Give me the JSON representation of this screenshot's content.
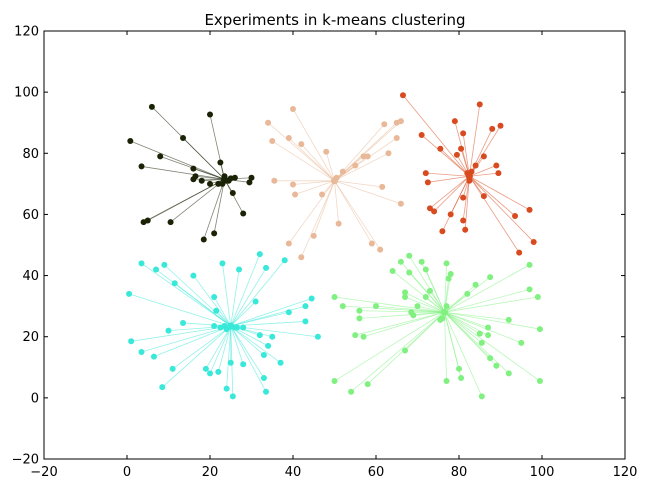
{
  "chart_data": {
    "type": "scatter",
    "title": "Experiments in k-means clustering",
    "xlabel": "",
    "ylabel": "",
    "xlim": [
      -20,
      120
    ],
    "ylim": [
      -20,
      120
    ],
    "x_ticks": [
      "−20",
      "0",
      "20",
      "40",
      "60",
      "80",
      "100",
      "120"
    ],
    "y_ticks": [
      "−20",
      "0",
      "20",
      "40",
      "60",
      "80",
      "100",
      "120"
    ],
    "grid": false,
    "legend": "none",
    "series": [
      {
        "color": "#1a2305",
        "points": [
          [
            0.8,
            84
          ],
          [
            3.5,
            75.7
          ],
          [
            4,
            57.5
          ],
          [
            5,
            58
          ],
          [
            6,
            95.2
          ],
          [
            8,
            79
          ],
          [
            10.5,
            57.5
          ],
          [
            13.5,
            85
          ],
          [
            16,
            75
          ],
          [
            16,
            71.5
          ],
          [
            16.5,
            72.5
          ],
          [
            18,
            71
          ],
          [
            18.5,
            51.8
          ],
          [
            20,
            92.7
          ],
          [
            21,
            53.8
          ],
          [
            22.5,
            77
          ],
          [
            23,
            70
          ],
          [
            23.5,
            72.5
          ],
          [
            24.5,
            71
          ],
          [
            25,
            71.8
          ],
          [
            25.5,
            67
          ],
          [
            28,
            60.3
          ],
          [
            29.5,
            70.5
          ],
          [
            30,
            72
          ],
          [
            20,
            70
          ],
          [
            22,
            70
          ],
          [
            24,
            71
          ],
          [
            26,
            72
          ]
        ],
        "centroid": [
          23.5,
          71.5
        ]
      },
      {
        "color": "#e8b898",
        "points": [
          [
            34,
            90
          ],
          [
            35,
            84
          ],
          [
            35.5,
            71
          ],
          [
            39,
            85
          ],
          [
            40,
            94.5
          ],
          [
            40,
            69.8
          ],
          [
            40.5,
            66.5
          ],
          [
            42,
            83
          ],
          [
            39,
            50.5
          ],
          [
            42,
            46
          ],
          [
            45,
            53
          ],
          [
            47,
            66.5
          ],
          [
            48,
            80.5
          ],
          [
            50,
            71
          ],
          [
            50.5,
            72
          ],
          [
            51,
            57
          ],
          [
            52,
            74
          ],
          [
            55,
            76
          ],
          [
            57,
            79
          ],
          [
            58,
            79
          ],
          [
            59,
            50.5
          ],
          [
            61,
            48.5
          ],
          [
            61.5,
            69
          ],
          [
            62,
            89.5
          ],
          [
            63,
            80
          ],
          [
            65,
            90
          ],
          [
            65,
            85
          ],
          [
            66,
            90.5
          ],
          [
            66,
            63.5
          ]
        ],
        "centroid": [
          50,
          71
        ]
      },
      {
        "color": "#d84a1f",
        "points": [
          [
            66.5,
            99
          ],
          [
            71,
            86
          ],
          [
            72,
            73.5
          ],
          [
            72.5,
            70.5
          ],
          [
            73,
            62
          ],
          [
            74,
            61
          ],
          [
            75.5,
            81.5
          ],
          [
            76,
            54.5
          ],
          [
            78,
            60
          ],
          [
            79,
            90.5
          ],
          [
            79.5,
            79.5
          ],
          [
            80.5,
            81.5
          ],
          [
            81,
            86.5
          ],
          [
            81,
            65.5
          ],
          [
            81,
            58
          ],
          [
            81.5,
            55
          ],
          [
            82,
            73.5
          ],
          [
            82.5,
            71
          ],
          [
            83,
            74
          ],
          [
            84,
            76
          ],
          [
            85,
            96
          ],
          [
            86,
            79
          ],
          [
            86,
            66
          ],
          [
            88,
            88
          ],
          [
            89,
            76
          ],
          [
            89.5,
            73.5
          ],
          [
            90,
            89
          ],
          [
            93.5,
            59.5
          ],
          [
            94.5,
            47.5
          ],
          [
            97,
            61.5
          ],
          [
            98,
            51
          ]
        ],
        "centroid": [
          82.5,
          72.5
        ]
      },
      {
        "color": "#38e8d8",
        "points": [
          [
            0.5,
            34
          ],
          [
            1,
            18.5
          ],
          [
            3.5,
            15
          ],
          [
            3.5,
            44
          ],
          [
            6.5,
            13.5
          ],
          [
            7,
            42
          ],
          [
            8.5,
            3.5
          ],
          [
            9,
            43.5
          ],
          [
            10,
            22
          ],
          [
            11,
            9.5
          ],
          [
            11.5,
            37.5
          ],
          [
            13.5,
            24.5
          ],
          [
            16,
            40
          ],
          [
            19,
            9.5
          ],
          [
            20,
            8
          ],
          [
            21,
            33
          ],
          [
            21,
            23.5
          ],
          [
            21.5,
            28.5
          ],
          [
            22,
            8.5
          ],
          [
            23,
            44
          ],
          [
            24,
            3
          ],
          [
            24,
            22.5
          ],
          [
            25,
            11.5
          ],
          [
            25.5,
            0.5
          ],
          [
            26,
            23
          ],
          [
            27,
            42
          ],
          [
            28,
            23
          ],
          [
            28,
            11
          ],
          [
            31,
            31.5
          ],
          [
            32,
            47
          ],
          [
            33,
            6.5
          ],
          [
            33,
            14
          ],
          [
            33.5,
            42.5
          ],
          [
            33.5,
            2
          ],
          [
            34,
            17
          ],
          [
            35,
            20
          ],
          [
            37,
            11.5
          ],
          [
            38,
            45
          ],
          [
            39,
            28
          ],
          [
            43,
            30
          ],
          [
            43,
            25
          ],
          [
            44.5,
            32.5
          ],
          [
            46,
            20
          ],
          [
            23.5,
            23.5
          ],
          [
            25,
            23.5
          ],
          [
            26.5,
            23
          ],
          [
            32,
            20.5
          ],
          [
            22.5,
            23
          ]
        ],
        "centroid": [
          25,
          23.5
        ]
      },
      {
        "color": "#80f080",
        "points": [
          [
            50,
            33
          ],
          [
            50,
            5.5
          ],
          [
            52,
            30
          ],
          [
            54,
            2
          ],
          [
            55,
            20.5
          ],
          [
            56,
            28.5
          ],
          [
            56,
            26
          ],
          [
            57,
            20
          ],
          [
            58,
            4.5
          ],
          [
            60,
            30
          ],
          [
            64,
            41.5
          ],
          [
            66,
            44.5
          ],
          [
            67,
            33
          ],
          [
            67,
            15.5
          ],
          [
            67,
            34.5
          ],
          [
            68,
            46.5
          ],
          [
            68,
            41
          ],
          [
            68.5,
            28
          ],
          [
            69,
            27
          ],
          [
            70,
            30
          ],
          [
            71,
            44.5
          ],
          [
            72,
            42
          ],
          [
            72,
            33
          ],
          [
            73,
            35
          ],
          [
            75.5,
            25.5
          ],
          [
            76,
            26
          ],
          [
            76.5,
            28
          ],
          [
            77,
            30
          ],
          [
            77,
            44
          ],
          [
            77.5,
            39
          ],
          [
            78,
            40.5
          ],
          [
            77,
            5.5
          ],
          [
            80,
            9.5
          ],
          [
            80.5,
            6.5
          ],
          [
            82,
            34
          ],
          [
            84,
            37
          ],
          [
            85,
            21
          ],
          [
            85.5,
            18
          ],
          [
            85.5,
            0.5
          ],
          [
            87,
            20.5
          ],
          [
            87,
            23
          ],
          [
            87.5,
            39.5
          ],
          [
            87.5,
            13
          ],
          [
            89,
            10.5
          ],
          [
            92,
            8
          ],
          [
            92,
            25.5
          ],
          [
            95,
            18
          ],
          [
            97,
            43.5
          ],
          [
            97,
            35.5
          ],
          [
            99,
            33
          ],
          [
            99.5,
            22.5
          ],
          [
            99.5,
            5.5
          ]
        ],
        "centroid": [
          76.5,
          28
        ]
      }
    ]
  }
}
